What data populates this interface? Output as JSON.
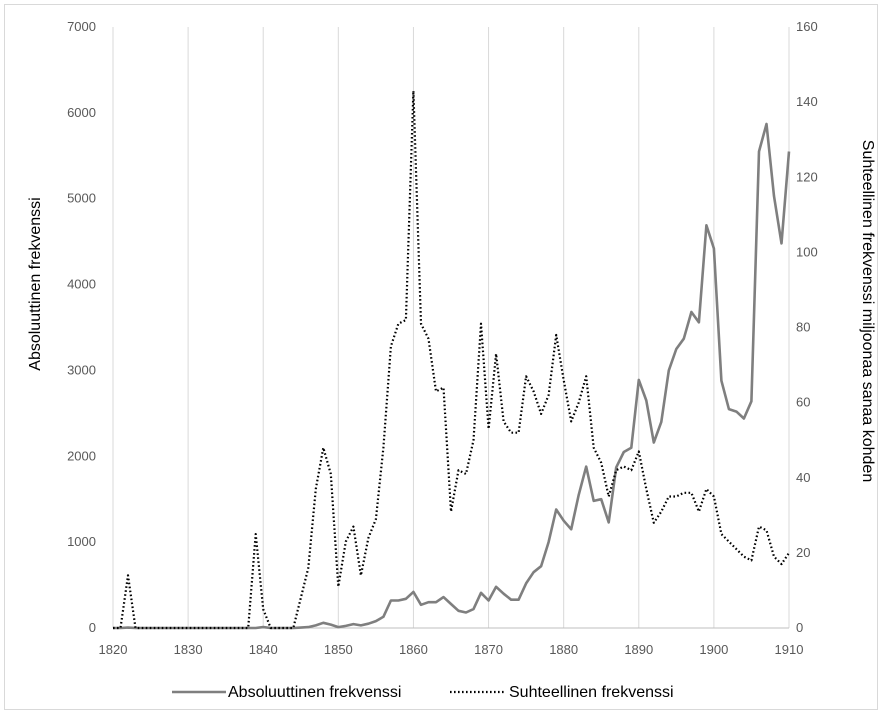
{
  "chart_data": {
    "type": "line",
    "title": "",
    "xlabel": "",
    "ylabel": "Absoluuttinen frekvenssi",
    "y2label": "Suhteellinen frekvenssi miljoonaa sanaa kohden",
    "xlim": [
      1820,
      1910
    ],
    "ylim": [
      0,
      7000
    ],
    "y2lim": [
      0,
      160
    ],
    "x_ticks": [
      1820,
      1830,
      1840,
      1850,
      1860,
      1870,
      1880,
      1890,
      1900,
      1910
    ],
    "y_ticks": [
      0,
      1000,
      2000,
      3000,
      4000,
      5000,
      6000,
      7000
    ],
    "y2_ticks": [
      0,
      20,
      40,
      60,
      80,
      100,
      120,
      140,
      160
    ],
    "grid": "vertical",
    "legend_position": "bottom",
    "series": [
      {
        "name": "Absoluuttinen frekvenssi",
        "axis": "left",
        "color": "#7f7f7f",
        "style": "solid",
        "x": [
          1820,
          1821,
          1822,
          1823,
          1824,
          1825,
          1826,
          1827,
          1828,
          1829,
          1830,
          1831,
          1832,
          1833,
          1834,
          1835,
          1836,
          1837,
          1838,
          1839,
          1840,
          1841,
          1842,
          1843,
          1844,
          1845,
          1846,
          1847,
          1848,
          1849,
          1850,
          1851,
          1852,
          1853,
          1854,
          1855,
          1856,
          1857,
          1858,
          1859,
          1860,
          1861,
          1862,
          1863,
          1864,
          1865,
          1866,
          1867,
          1868,
          1869,
          1870,
          1871,
          1872,
          1873,
          1874,
          1875,
          1876,
          1877,
          1878,
          1879,
          1880,
          1881,
          1882,
          1883,
          1884,
          1885,
          1886,
          1887,
          1888,
          1889,
          1890,
          1891,
          1892,
          1893,
          1894,
          1895,
          1896,
          1897,
          1898,
          1899,
          1900,
          1901,
          1902,
          1903,
          1904,
          1905,
          1906,
          1907,
          1908,
          1909,
          1910
        ],
        "values": [
          0,
          0,
          5,
          0,
          0,
          0,
          0,
          0,
          0,
          0,
          0,
          0,
          0,
          0,
          0,
          0,
          0,
          0,
          0,
          0,
          10,
          0,
          0,
          0,
          0,
          5,
          10,
          30,
          60,
          40,
          10,
          25,
          45,
          30,
          50,
          80,
          130,
          320,
          320,
          340,
          420,
          270,
          300,
          300,
          360,
          280,
          200,
          180,
          220,
          410,
          320,
          480,
          400,
          330,
          330,
          520,
          650,
          720,
          1000,
          1380,
          1250,
          1150,
          1550,
          1880,
          1480,
          1500,
          1230,
          1870,
          2050,
          2100,
          2890,
          2650,
          2160,
          2400,
          3000,
          3250,
          3370,
          3680,
          3560,
          4690,
          4420,
          2880,
          2550,
          2520,
          2440,
          2640,
          5550,
          5870,
          5030,
          4480,
          5550
        ]
      },
      {
        "name": "Suhteellinen frekvenssi",
        "axis": "right",
        "color": "#000000",
        "style": "dotted",
        "x": [
          1820,
          1821,
          1822,
          1823,
          1824,
          1825,
          1826,
          1827,
          1828,
          1829,
          1830,
          1831,
          1832,
          1833,
          1834,
          1835,
          1836,
          1837,
          1838,
          1839,
          1840,
          1841,
          1842,
          1843,
          1844,
          1845,
          1846,
          1847,
          1848,
          1849,
          1850,
          1851,
          1852,
          1853,
          1854,
          1855,
          1856,
          1857,
          1858,
          1859,
          1860,
          1861,
          1862,
          1863,
          1864,
          1865,
          1866,
          1867,
          1868,
          1869,
          1870,
          1871,
          1872,
          1873,
          1874,
          1875,
          1876,
          1877,
          1878,
          1879,
          1880,
          1881,
          1882,
          1883,
          1884,
          1885,
          1886,
          1887,
          1888,
          1889,
          1890,
          1891,
          1892,
          1893,
          1894,
          1895,
          1896,
          1897,
          1898,
          1899,
          1900,
          1901,
          1902,
          1903,
          1904,
          1905,
          1906,
          1907,
          1908,
          1909,
          1910
        ],
        "values": [
          0,
          0,
          14,
          0,
          0,
          0,
          0,
          0,
          0,
          0,
          0,
          0,
          0,
          0,
          0,
          0,
          0,
          0,
          0,
          25,
          5,
          0,
          0,
          0,
          0,
          8,
          16,
          37,
          48,
          41,
          11,
          23,
          27,
          14,
          24,
          29,
          48,
          75,
          81,
          82,
          143,
          81,
          77,
          63,
          64,
          31,
          42,
          41,
          50,
          81,
          53,
          73,
          55,
          52,
          52,
          67,
          63,
          57,
          62,
          78,
          66,
          55,
          60,
          67,
          48,
          44,
          35,
          42,
          43,
          42,
          47,
          37,
          28,
          31,
          35,
          35,
          36,
          36,
          31,
          37,
          35,
          25,
          23,
          21,
          19,
          18,
          27,
          26,
          19,
          17,
          20
        ]
      }
    ]
  }
}
